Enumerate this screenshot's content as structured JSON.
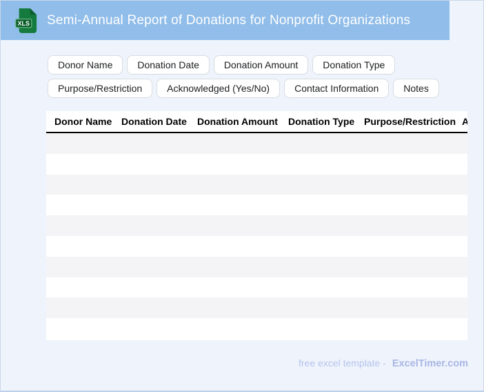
{
  "header": {
    "title": "Semi-Annual Report of Donations for Nonprofit Organizations",
    "bg_color": "#90bde9",
    "icon": {
      "name": "xls-file-icon",
      "label": "XLS",
      "color": "#157a3d"
    }
  },
  "chips": {
    "row1": [
      "Donor Name",
      "Donation Date",
      "Donation Amount",
      "Donation Type"
    ],
    "row2": [
      "Purpose/Restriction",
      "Acknowledged (Yes/No)",
      "Contact Information",
      "Notes"
    ]
  },
  "table": {
    "columns": [
      "Donor Name",
      "Donation Date",
      "Donation Amount",
      "Donation Type",
      "Purpose/Restriction",
      "Acknowledged (Yes/No)"
    ],
    "row_count": 10,
    "stripe_color": "#f4f4f6",
    "rows_empty": true
  },
  "footer": {
    "text": "free excel template -",
    "brand": "ExcelTimer.com"
  },
  "colors": {
    "page_bg": "#eff4fc",
    "page_border": "#c9d7ea",
    "chip_border": "#d7dbe1",
    "footer_text": "#b6c2ec",
    "footer_brand": "#a8b6e4"
  }
}
